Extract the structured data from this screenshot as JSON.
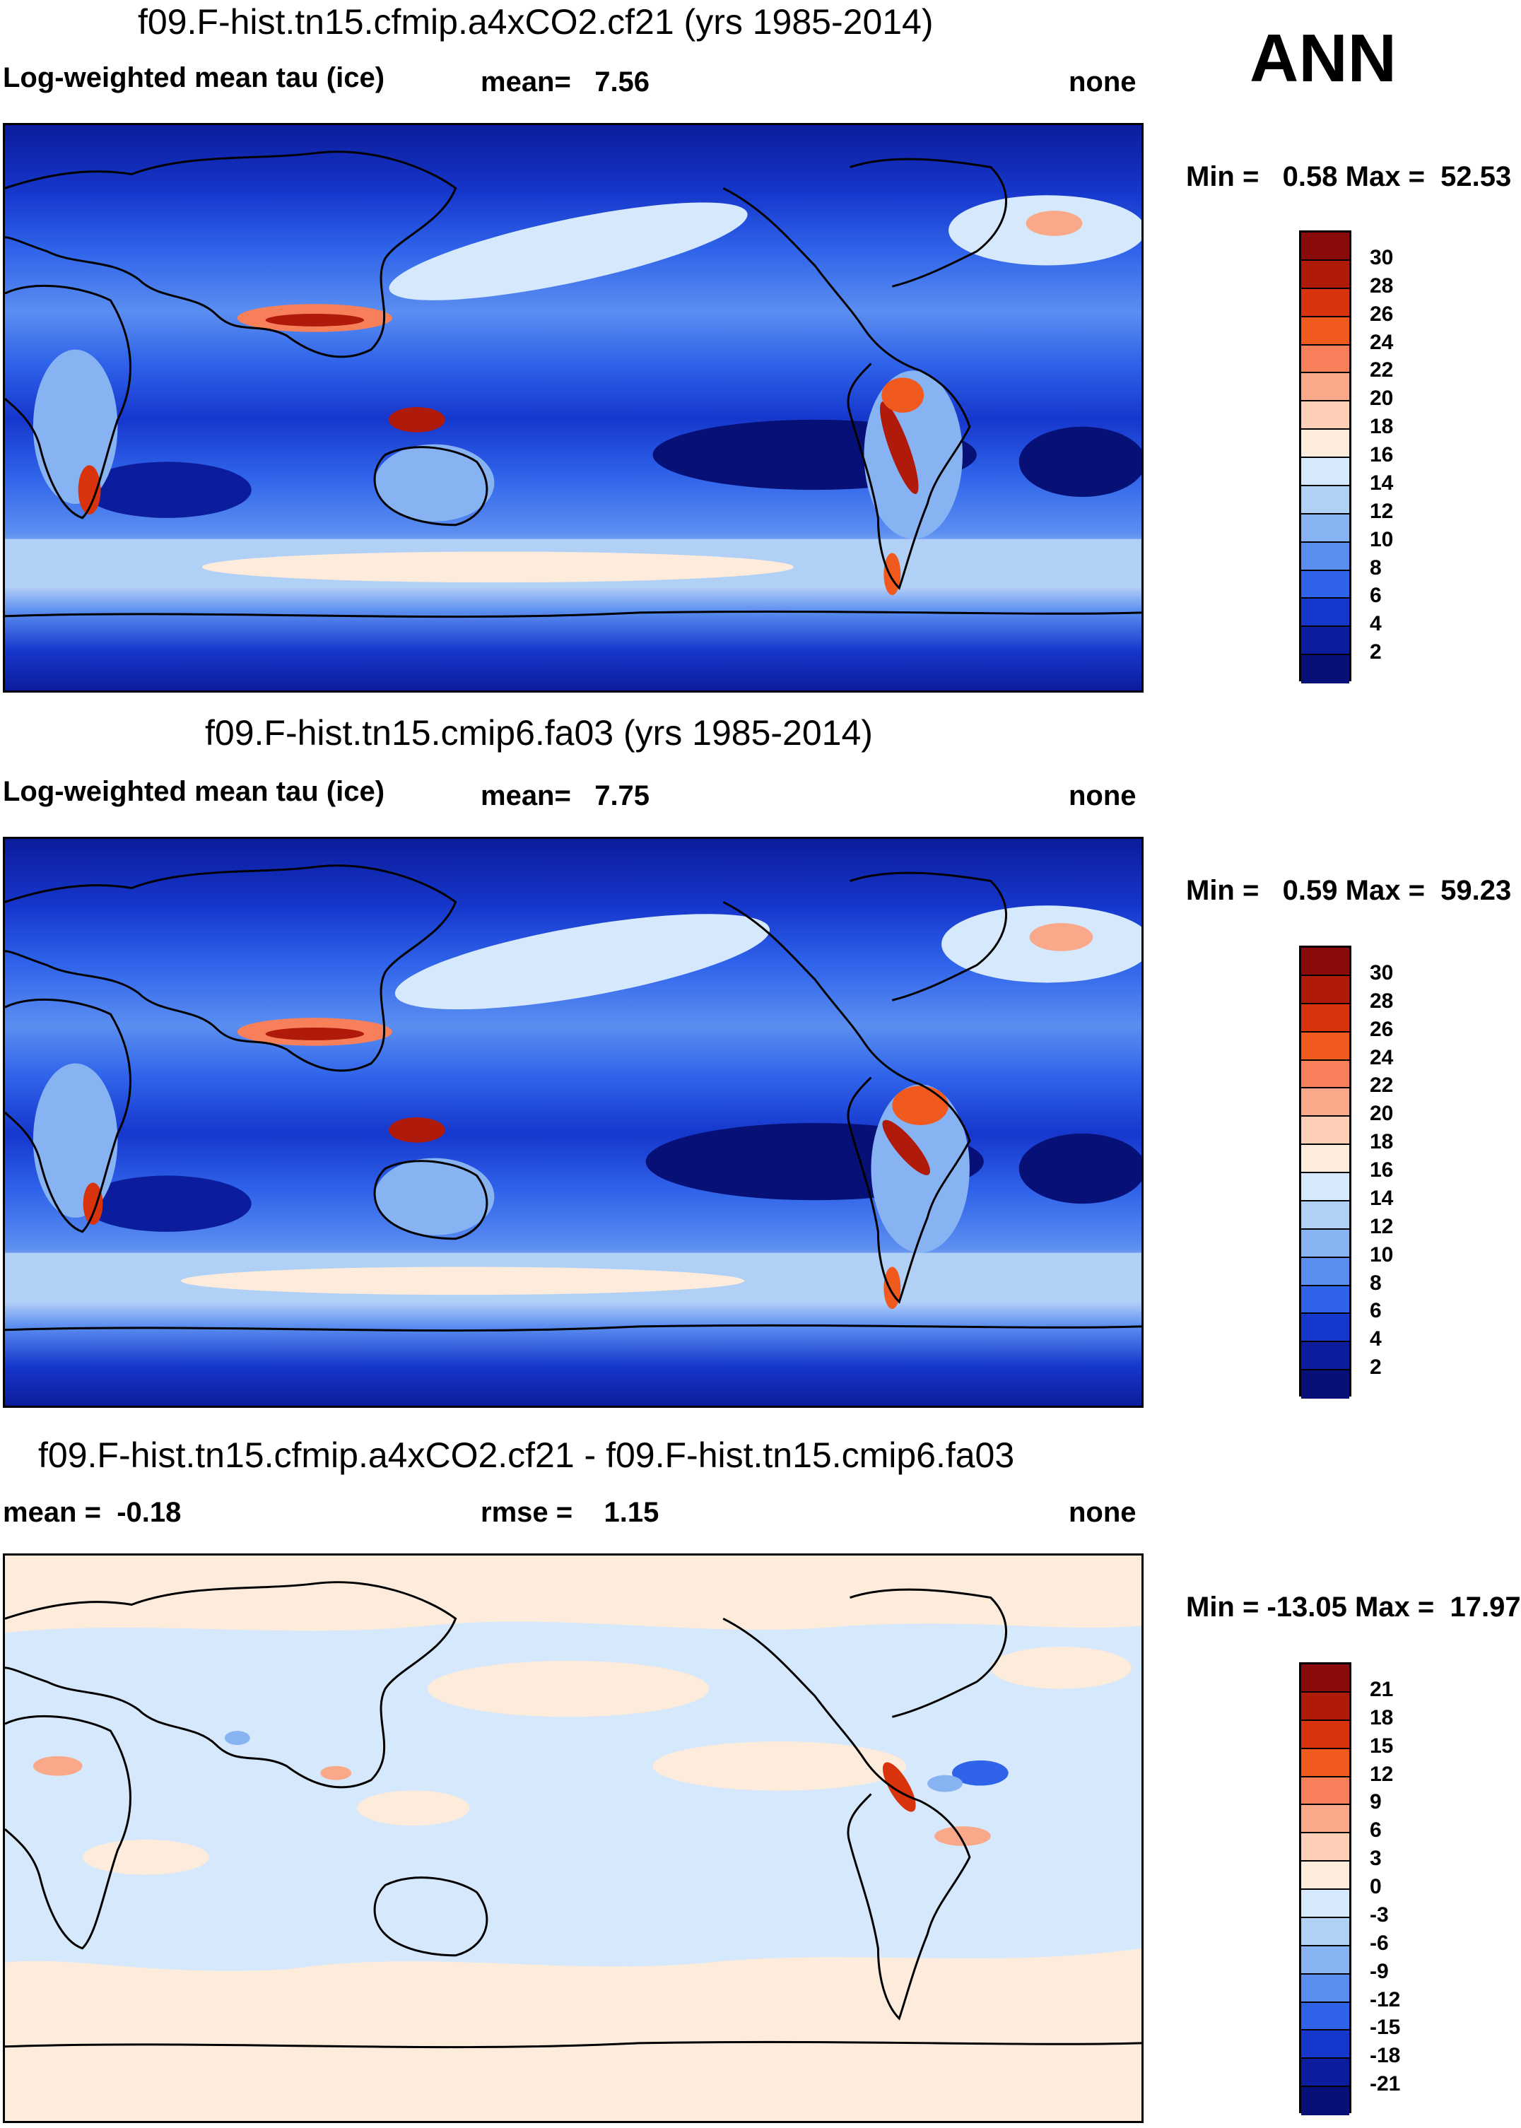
{
  "season": "ANN",
  "panels": [
    {
      "title": "f09.F-hist.tn15.cfmip.a4xCO2.cf21 (yrs 1985-2014)",
      "left_label": "Log-weighted mean tau (ice)",
      "center_label": "mean=   7.56",
      "right_label": "none",
      "minmax": "Min =   0.58 Max =  52.53",
      "colorbar": {
        "levels": [
          "30",
          "28",
          "26",
          "24",
          "22",
          "20",
          "18",
          "16",
          "14",
          "12",
          "10",
          "8",
          "6",
          "4",
          "2"
        ],
        "colors": [
          "#8a0b0b",
          "#b01a0b",
          "#d8330c",
          "#f05a1e",
          "#f7805a",
          "#f9a989",
          "#fdcfb6",
          "#fdebdc",
          "#d6e8fb",
          "#b1d0f6",
          "#88b3f3",
          "#5b8ef0",
          "#2f63ea",
          "#1637cc",
          "#0b1c9c",
          "#061077"
        ]
      }
    },
    {
      "title": "f09.F-hist.tn15.cmip6.fa03 (yrs 1985-2014)",
      "left_label": "Log-weighted mean tau (ice)",
      "center_label": "mean=   7.75",
      "right_label": "none",
      "minmax": "Min =   0.59 Max =  59.23",
      "colorbar": {
        "levels": [
          "30",
          "28",
          "26",
          "24",
          "22",
          "20",
          "18",
          "16",
          "14",
          "12",
          "10",
          "8",
          "6",
          "4",
          "2"
        ],
        "colors": [
          "#8a0b0b",
          "#b01a0b",
          "#d8330c",
          "#f05a1e",
          "#f7805a",
          "#f9a989",
          "#fdcfb6",
          "#fdebdc",
          "#d6e8fb",
          "#b1d0f6",
          "#88b3f3",
          "#5b8ef0",
          "#2f63ea",
          "#1637cc",
          "#0b1c9c",
          "#061077"
        ]
      }
    },
    {
      "title": "f09.F-hist.tn15.cfmip.a4xCO2.cf21 - f09.F-hist.tn15.cmip6.fa03",
      "left_label": "mean =  -0.18",
      "center_label": "rmse =    1.15",
      "right_label": "none",
      "minmax": "Min = -13.05 Max =  17.97",
      "colorbar": {
        "levels": [
          "21",
          "18",
          "15",
          "12",
          "9",
          "6",
          "3",
          "0",
          "-3",
          "-6",
          "-9",
          "-12",
          "-15",
          "-18",
          "-21"
        ],
        "colors": [
          "#8a0b0b",
          "#b01a0b",
          "#d8330c",
          "#f05a1e",
          "#f7805a",
          "#f9a989",
          "#fdcfb6",
          "#fdebdc",
          "#d6e8fb",
          "#b1d0f6",
          "#88b3f3",
          "#5b8ef0",
          "#2f63ea",
          "#1637cc",
          "#0b1c9c",
          "#061077"
        ]
      }
    }
  ],
  "chart_data": [
    {
      "type": "heatmap",
      "title": "f09.F-hist.tn15.cfmip.a4xCO2.cf21 (yrs 1985-2014)",
      "variable": "Log-weighted mean tau (ice)",
      "mean": 7.56,
      "min": 0.58,
      "max": 52.53,
      "units": "none",
      "contour_levels": [
        2,
        4,
        6,
        8,
        10,
        12,
        14,
        16,
        18,
        20,
        22,
        24,
        26,
        28,
        30
      ]
    },
    {
      "type": "heatmap",
      "title": "f09.F-hist.tn15.cmip6.fa03 (yrs 1985-2014)",
      "variable": "Log-weighted mean tau (ice)",
      "mean": 7.75,
      "min": 0.59,
      "max": 59.23,
      "units": "none",
      "contour_levels": [
        2,
        4,
        6,
        8,
        10,
        12,
        14,
        16,
        18,
        20,
        22,
        24,
        26,
        28,
        30
      ]
    },
    {
      "type": "heatmap",
      "title": "f09.F-hist.tn15.cfmip.a4xCO2.cf21 - f09.F-hist.tn15.cmip6.fa03",
      "mean": -0.18,
      "rmse": 1.15,
      "min": -13.05,
      "max": 17.97,
      "units": "none",
      "contour_levels": [
        -21,
        -18,
        -15,
        -12,
        -9,
        -6,
        -3,
        0,
        3,
        6,
        9,
        12,
        15,
        18,
        21
      ]
    }
  ]
}
